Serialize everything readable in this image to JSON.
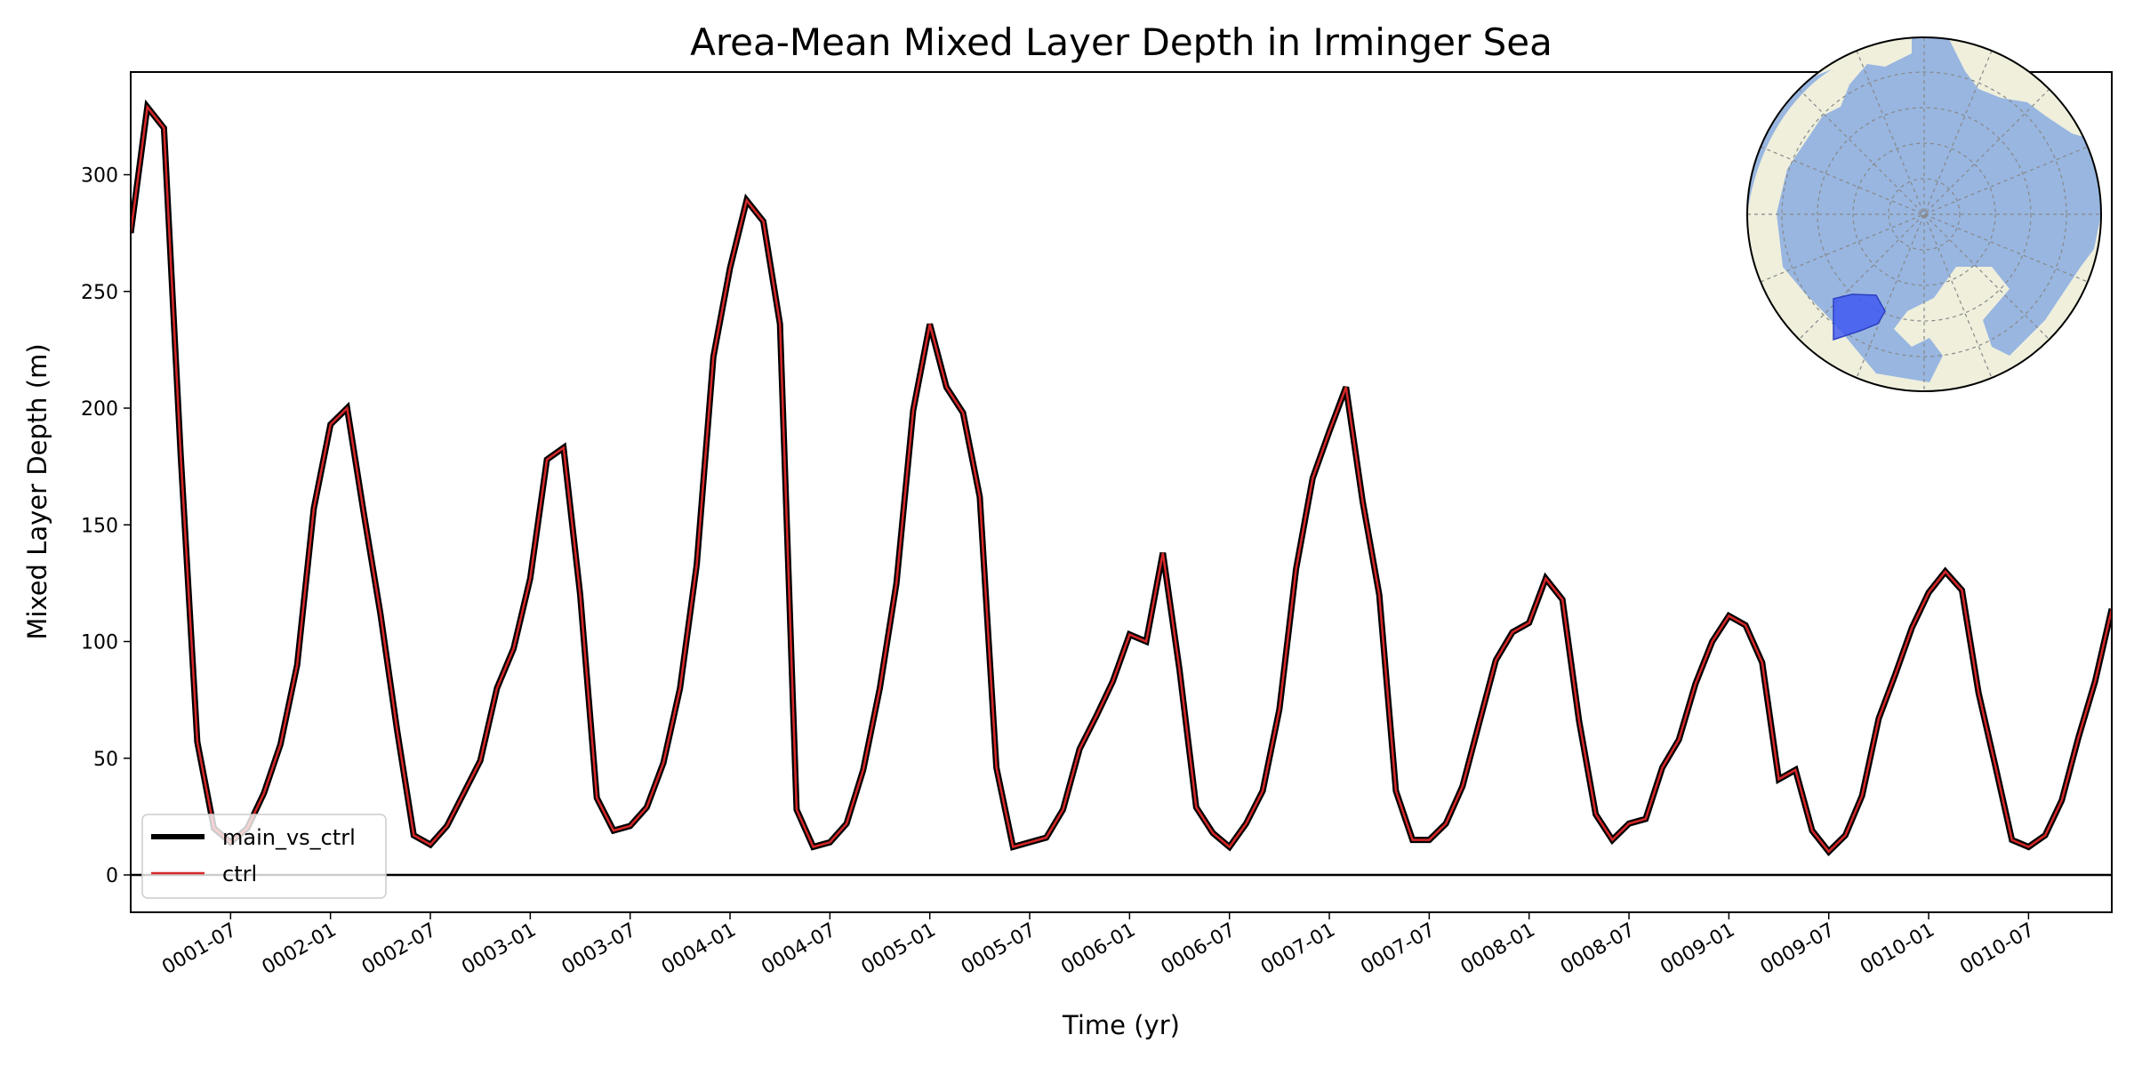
{
  "chart_data": {
    "type": "line",
    "title": "Area-Mean Mixed Layer Depth in Irminger Sea",
    "xlabel": "Time (yr)",
    "ylabel": "Mixed Layer Depth (m)",
    "xlim": [
      "0001-01",
      "0010-12"
    ],
    "ylim": [
      -16,
      344
    ],
    "x_ticks": [
      "0001-07",
      "0002-01",
      "0002-07",
      "0003-01",
      "0003-07",
      "0004-01",
      "0004-07",
      "0005-01",
      "0005-07",
      "0006-01",
      "0006-07",
      "0007-01",
      "0007-07",
      "0008-01",
      "0008-07",
      "0009-01",
      "0009-07",
      "0010-01",
      "0010-07"
    ],
    "y_ticks": [
      0,
      50,
      100,
      150,
      200,
      250,
      300
    ],
    "grid": false,
    "legend_position": "lower-left",
    "zero_line": true,
    "x": [
      "0001-01",
      "0001-02",
      "0001-03",
      "0001-04",
      "0001-05",
      "0001-06",
      "0001-07",
      "0001-08",
      "0001-09",
      "0001-10",
      "0001-11",
      "0001-12",
      "0002-01",
      "0002-02",
      "0002-03",
      "0002-04",
      "0002-05",
      "0002-06",
      "0002-07",
      "0002-08",
      "0002-09",
      "0002-10",
      "0002-11",
      "0002-12",
      "0003-01",
      "0003-02",
      "0003-03",
      "0003-04",
      "0003-05",
      "0003-06",
      "0003-07",
      "0003-08",
      "0003-09",
      "0003-10",
      "0003-11",
      "0003-12",
      "0004-01",
      "0004-02",
      "0004-03",
      "0004-04",
      "0004-05",
      "0004-06",
      "0004-07",
      "0004-08",
      "0004-09",
      "0004-10",
      "0004-11",
      "0004-12",
      "0005-01",
      "0005-02",
      "0005-03",
      "0005-04",
      "0005-05",
      "0005-06",
      "0005-07",
      "0005-08",
      "0005-09",
      "0005-10",
      "0005-11",
      "0005-12",
      "0006-01",
      "0006-02",
      "0006-03",
      "0006-04",
      "0006-05",
      "0006-06",
      "0006-07",
      "0006-08",
      "0006-09",
      "0006-10",
      "0006-11",
      "0006-12",
      "0007-01",
      "0007-02",
      "0007-03",
      "0007-04",
      "0007-05",
      "0007-06",
      "0007-07",
      "0007-08",
      "0007-09",
      "0007-10",
      "0007-11",
      "0007-12",
      "0008-01",
      "0008-02",
      "0008-03",
      "0008-04",
      "0008-05",
      "0008-06",
      "0008-07",
      "0008-08",
      "0008-09",
      "0008-10",
      "0008-11",
      "0008-12",
      "0009-01",
      "0009-02",
      "0009-03",
      "0009-04",
      "0009-05",
      "0009-06",
      "0009-07",
      "0009-08",
      "0009-09",
      "0009-10",
      "0009-11",
      "0009-12",
      "0010-01",
      "0010-02",
      "0010-03",
      "0010-04",
      "0010-05",
      "0010-06",
      "0010-07",
      "0010-08",
      "0010-09",
      "0010-10",
      "0010-11",
      "0010-12"
    ],
    "series": [
      {
        "name": "main_vs_ctrl",
        "color": "#000000",
        "values": [
          275,
          329,
          320,
          180,
          57,
          20,
          14,
          20,
          35,
          56,
          90,
          157,
          193,
          200,
          155,
          112,
          62,
          17,
          13,
          21,
          35,
          49,
          80,
          97,
          127,
          178,
          183,
          120,
          33,
          19,
          21,
          29,
          48,
          80,
          133,
          222,
          260,
          289,
          280,
          236,
          28,
          12,
          14,
          22,
          45,
          80,
          125,
          199,
          236,
          209,
          198,
          162,
          46,
          12,
          14,
          16,
          28,
          54,
          68,
          83,
          103,
          100,
          138,
          88,
          29,
          18,
          12,
          22,
          36,
          71,
          131,
          170,
          190,
          209,
          160,
          120,
          36,
          15,
          15,
          22,
          38,
          65,
          92,
          104,
          108,
          127,
          118,
          66,
          26,
          15,
          22,
          24,
          46,
          58,
          82,
          100,
          111,
          107,
          91,
          41,
          45,
          19,
          10,
          17,
          34,
          67,
          86,
          106,
          121,
          130,
          122,
          78,
          47,
          15,
          12,
          17,
          32,
          59,
          83,
          114
        ]
      },
      {
        "name": "ctrl",
        "color": "#d62728",
        "values": [
          275,
          329,
          320,
          180,
          57,
          20,
          14,
          20,
          35,
          56,
          90,
          157,
          193,
          200,
          155,
          112,
          62,
          17,
          13,
          21,
          35,
          49,
          80,
          97,
          127,
          178,
          183,
          120,
          33,
          19,
          21,
          29,
          48,
          80,
          133,
          222,
          260,
          289,
          280,
          236,
          28,
          12,
          14,
          22,
          45,
          80,
          125,
          199,
          236,
          209,
          198,
          162,
          46,
          12,
          14,
          16,
          28,
          54,
          68,
          83,
          103,
          100,
          138,
          88,
          29,
          18,
          12,
          22,
          36,
          71,
          131,
          170,
          190,
          209,
          160,
          120,
          36,
          15,
          15,
          22,
          38,
          65,
          92,
          104,
          108,
          127,
          118,
          66,
          26,
          15,
          22,
          24,
          46,
          58,
          82,
          100,
          111,
          107,
          91,
          41,
          45,
          19,
          10,
          17,
          34,
          67,
          86,
          106,
          121,
          130,
          122,
          78,
          47,
          15,
          12,
          17,
          32,
          59,
          83,
          114
        ]
      }
    ],
    "inset_map": {
      "projection": "north-polar-stereographic",
      "ocean_color": "#98b6e0",
      "land_color": "#efefdc",
      "region_color": "#3b55f2",
      "region_name": "Irminger Sea"
    }
  }
}
